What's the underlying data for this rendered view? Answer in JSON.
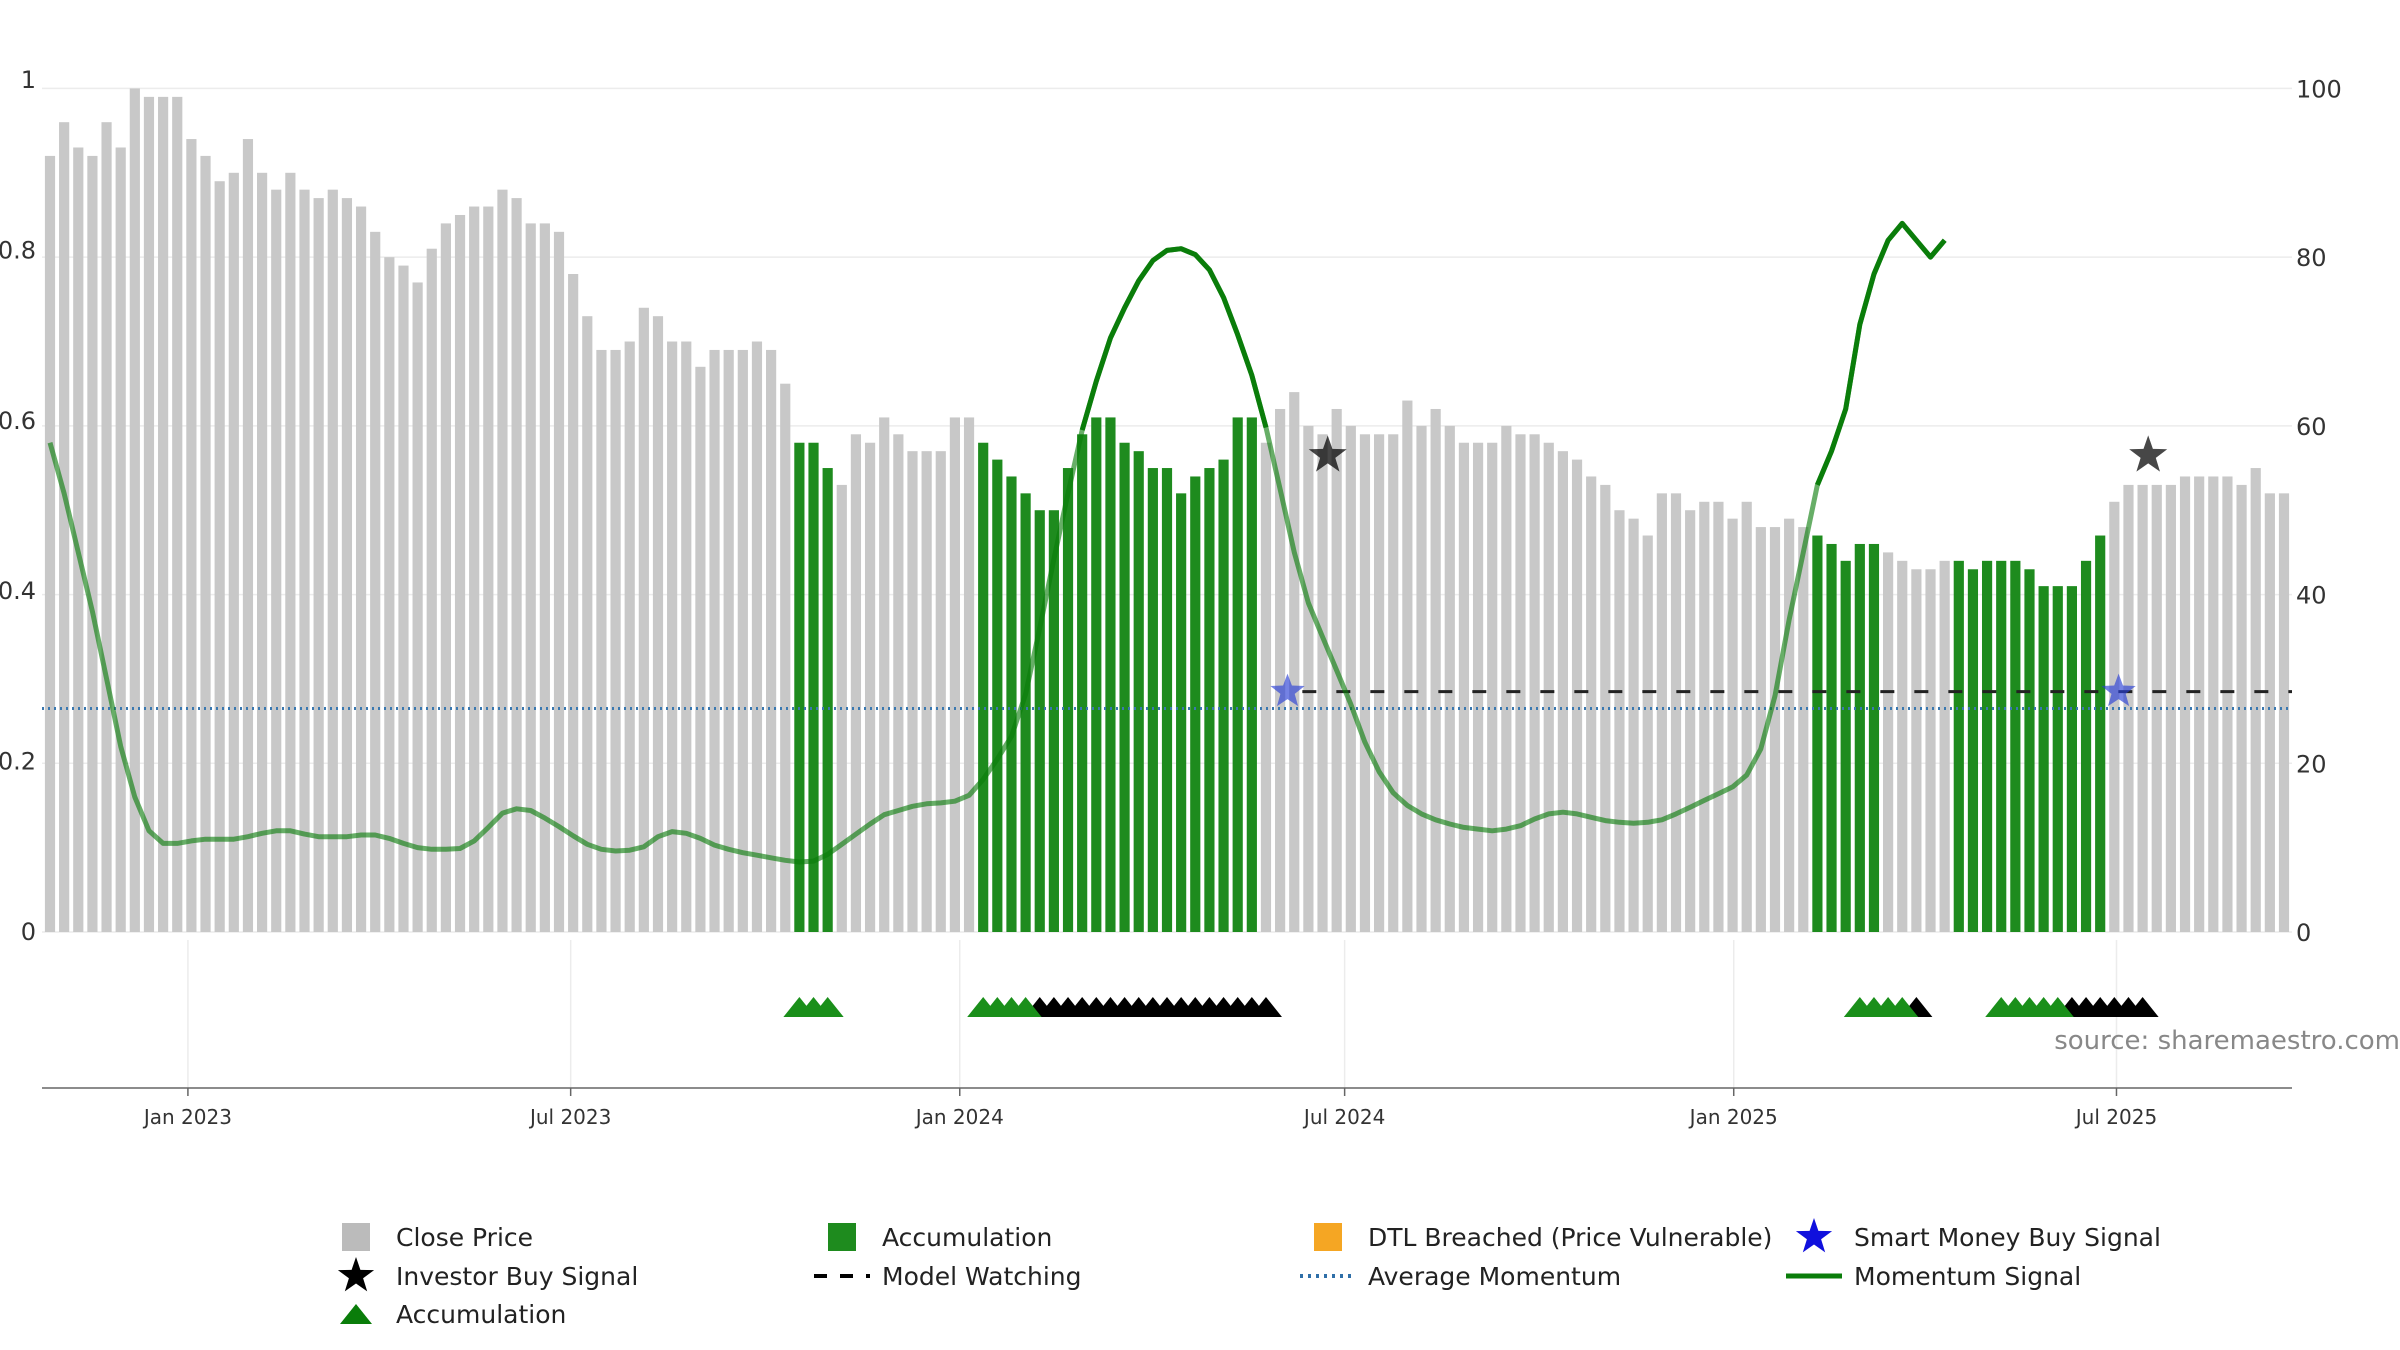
{
  "chart_data": {
    "type": "bar",
    "source": "source: sharemaestro.com",
    "left_axis": {
      "ticks": [
        0,
        0.2,
        0.4,
        0.6,
        0.8,
        1
      ],
      "tick_labels": [
        "0",
        "0.2",
        "0.4",
        "0.6",
        "0.8",
        "1"
      ],
      "range": [
        0,
        1
      ]
    },
    "right_axis": {
      "ticks": [
        0,
        20,
        40,
        60,
        80,
        100
      ],
      "tick_labels": [
        "0",
        "20",
        "40",
        "60",
        "80",
        "100"
      ],
      "range": [
        0,
        101
      ]
    },
    "x_axis": {
      "start": "2022-10-24",
      "end": "2025-09-22",
      "ticks": [
        "2023-01-01",
        "2023-07-01",
        "2024-01-01",
        "2024-07-01",
        "2025-01-01",
        "2025-07-01"
      ],
      "tick_labels": [
        "Jan 2023",
        "Jul 2023",
        "Jan 2024",
        "Jul 2024",
        "Jan 2025",
        "Jul 2025"
      ]
    },
    "grid": true,
    "legend_position": "bottom",
    "series": [
      {
        "name": "Close Price",
        "weekly_start": "2022-10-24",
        "values": [
          92,
          96,
          93,
          92,
          96,
          93,
          100,
          99,
          99,
          99,
          94,
          92,
          89,
          90,
          94,
          90,
          88,
          90,
          88,
          87,
          88,
          87,
          86,
          83,
          80,
          79,
          77,
          81,
          84,
          85,
          86,
          86,
          88,
          87,
          84,
          84,
          83,
          78,
          73,
          69,
          69,
          70,
          74,
          73,
          70,
          70,
          67,
          69,
          69,
          69,
          70,
          69,
          65,
          58,
          58,
          55,
          53,
          59,
          58,
          61,
          59,
          57,
          57,
          57,
          61,
          61,
          58,
          56,
          54,
          52,
          50,
          50,
          55,
          59,
          61,
          61,
          58,
          57,
          55,
          55,
          52,
          54,
          55,
          56,
          61,
          61,
          58,
          62,
          64,
          60,
          59,
          62,
          60,
          59,
          59,
          59,
          63,
          60,
          62,
          60,
          58,
          58,
          58,
          60,
          59,
          59,
          58,
          57,
          56,
          54,
          53,
          50,
          49,
          47,
          52,
          52,
          50,
          51,
          51,
          49,
          51,
          48,
          48,
          49,
          48,
          47,
          46,
          44,
          46,
          46,
          45,
          44,
          43,
          43,
          44,
          44,
          43,
          44,
          44,
          44,
          43,
          41,
          41,
          41,
          44,
          47,
          51,
          53,
          53,
          53,
          53,
          54,
          54,
          54,
          54,
          53,
          55,
          52,
          52
        ],
        "accumulation_ranges": [
          [
            53,
            55
          ],
          [
            66,
            85
          ],
          [
            125,
            129
          ],
          [
            135,
            145
          ]
        ]
      },
      {
        "name": "Momentum Signal",
        "weekly_start": "2022-10-24",
        "values": [
          58,
          52,
          45,
          38,
          30,
          22,
          16,
          12,
          10.5,
          10.5,
          10.8,
          11,
          11,
          11,
          11.3,
          11.7,
          12,
          12,
          11.6,
          11.3,
          11.3,
          11.3,
          11.5,
          11.5,
          11.1,
          10.5,
          10,
          9.8,
          9.8,
          9.9,
          10.8,
          12.4,
          14.1,
          14.6,
          14.4,
          13.5,
          12.5,
          11.4,
          10.4,
          9.8,
          9.6,
          9.7,
          10.1,
          11.3,
          11.9,
          11.7,
          11.1,
          10.3,
          9.8,
          9.4,
          9.1,
          8.8,
          8.5,
          8.3,
          8.4,
          9.2,
          10.4,
          11.6,
          12.8,
          13.9,
          14.4,
          14.9,
          15.2,
          15.3,
          15.5,
          16.2,
          18.1,
          20.5,
          23.2,
          28.2,
          36,
          44.2,
          52,
          59.5,
          65.3,
          70.4,
          74,
          77.2,
          79.6,
          80.8,
          81,
          80.3,
          78.5,
          75.2,
          70.8,
          66,
          59.8,
          52.5,
          45,
          39,
          35,
          31,
          27,
          22.5,
          19,
          16.5,
          15,
          14,
          13.3,
          12.8,
          12.4,
          12.2,
          12,
          12.2,
          12.6,
          13.4,
          14,
          14.2,
          14,
          13.6,
          13.2,
          13,
          12.9,
          13,
          13.3,
          14,
          14.8,
          15.6,
          16.4,
          17.2,
          18.6,
          21.7,
          28,
          37,
          45,
          53,
          57,
          62,
          72,
          78,
          82,
          84,
          82,
          80,
          82
        ]
      },
      {
        "name": "Average Momentum",
        "value": 26.5
      },
      {
        "name": "Model Watching",
        "value": 28.5,
        "start": "2024-06-11",
        "end": "2025-09-22"
      },
      {
        "name": "Smart Money Buy Signal",
        "points": [
          {
            "date": "2024-06-04",
            "value": 28.5
          },
          {
            "date": "2025-07-02",
            "value": 28.5
          }
        ]
      },
      {
        "name": "Investor Buy Signal",
        "points": [
          {
            "date": "2024-06-23",
            "value": 56.5
          },
          {
            "date": "2025-07-16",
            "value": 56.5
          }
        ]
      },
      {
        "name": "Accumulation",
        "green_markers": [
          53,
          54,
          55,
          66,
          67,
          68,
          69,
          128,
          129,
          130,
          131,
          138,
          139,
          140,
          141,
          142
        ],
        "black_markers": [
          70,
          71,
          72,
          73,
          74,
          75,
          76,
          77,
          78,
          79,
          80,
          81,
          82,
          83,
          84,
          85,
          86,
          132,
          143,
          144,
          145,
          146,
          147,
          148
        ]
      }
    ],
    "legend": [
      {
        "label": "Close Price",
        "symbol": "square",
        "color": "#bbbbbb"
      },
      {
        "label": "Accumulation",
        "symbol": "square",
        "color": "#1e8b1e"
      },
      {
        "label": "DTL Breached (Price Vulnerable)",
        "symbol": "square",
        "color": "#f5a623"
      },
      {
        "label": "Smart Money Buy Signal",
        "symbol": "star",
        "color": "#1010dd"
      },
      {
        "label": "Investor Buy Signal",
        "symbol": "star",
        "color": "#000000"
      },
      {
        "label": "Model Watching",
        "symbol": "dash",
        "color": "#000000"
      },
      {
        "label": "Average Momentum",
        "symbol": "dot",
        "color": "#2f6fa8"
      },
      {
        "label": "Momentum Signal",
        "symbol": "line",
        "color": "#0a7d0a"
      },
      {
        "label": "Accumulation",
        "symbol": "triangle",
        "color": "#0a7d0a"
      }
    ]
  }
}
